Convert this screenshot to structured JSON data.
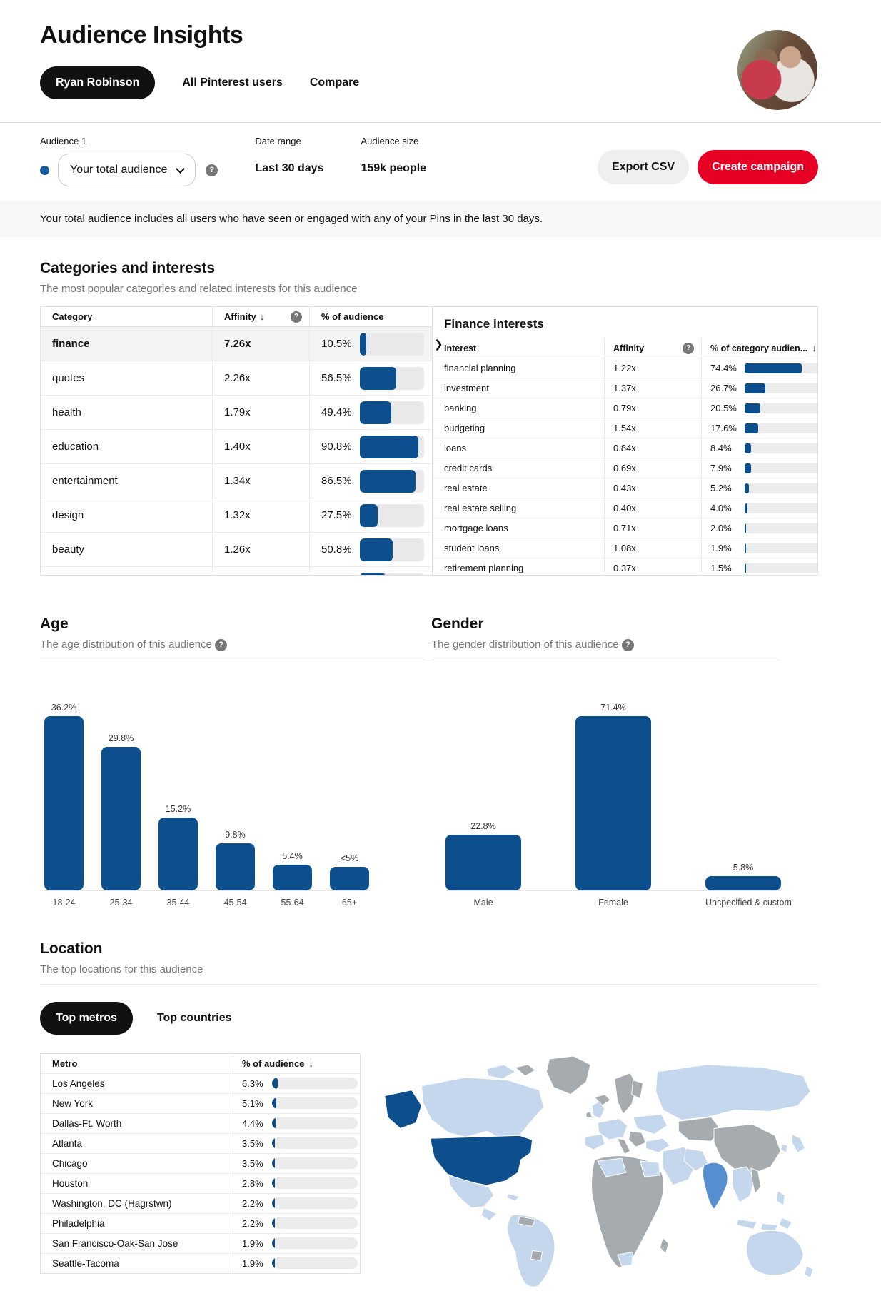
{
  "colors": {
    "accent_red": "#e60023",
    "bar_blue": "#0d4e8c",
    "bar_track": "#e9e9e9",
    "map_light": "#c4d7ec",
    "map_mid": "#568fd0",
    "map_gray": "#a6abb0",
    "selected_row_bg": "#f4f4f4",
    "dot_blue": "#15599f"
  },
  "icons": {
    "help": "?",
    "sort_desc": "↓",
    "chevron_right": "❯"
  },
  "header": {
    "title": "Audience Insights",
    "tabs": [
      {
        "label": "Ryan Robinson",
        "active": true
      },
      {
        "label": "All Pinterest users",
        "active": false
      },
      {
        "label": "Compare",
        "active": false
      }
    ]
  },
  "audience_bar": {
    "audience_label": "Audience 1",
    "selector_value": "Your total audience",
    "date_range_label": "Date range",
    "date_range_value": "Last 30 days",
    "audience_size_label": "Audience size",
    "audience_size_value": "159k people",
    "export_button": "Export CSV",
    "create_button": "Create campaign"
  },
  "banner": {
    "text": "Your total audience includes all users who have seen or engaged with any of your Pins in the last 30 days."
  },
  "categories": {
    "title": "Categories and interests",
    "subtitle": "The most popular categories and related interests for this audience",
    "table": {
      "headers": [
        "Category",
        "Affinity",
        "% of audience"
      ],
      "rows": [
        {
          "category": "finance",
          "affinity": "7.26x",
          "pct": "10.5%",
          "pct_value": 10.5,
          "selected": true
        },
        {
          "category": "quotes",
          "affinity": "2.26x",
          "pct": "56.5%",
          "pct_value": 56.5,
          "selected": false
        },
        {
          "category": "health",
          "affinity": "1.79x",
          "pct": "49.4%",
          "pct_value": 49.4,
          "selected": false
        },
        {
          "category": "education",
          "affinity": "1.40x",
          "pct": "90.8%",
          "pct_value": 90.8,
          "selected": false
        },
        {
          "category": "entertainment",
          "affinity": "1.34x",
          "pct": "86.5%",
          "pct_value": 86.5,
          "selected": false
        },
        {
          "category": "design",
          "affinity": "1.32x",
          "pct": "27.5%",
          "pct_value": 27.5,
          "selected": false
        },
        {
          "category": "beauty",
          "affinity": "1.26x",
          "pct": "50.8%",
          "pct_value": 50.8,
          "selected": false
        },
        {
          "category": "",
          "affinity": "",
          "pct": "",
          "pct_value": 40,
          "selected": false
        }
      ]
    },
    "detail": {
      "title": "Finance interests",
      "headers": [
        "Interest",
        "Affinity",
        "% of category audien..."
      ],
      "rows": [
        {
          "interest": "financial planning",
          "affinity": "1.22x",
          "pct": "74.4%",
          "pct_value": 74.4
        },
        {
          "interest": "investment",
          "affinity": "1.37x",
          "pct": "26.7%",
          "pct_value": 26.7
        },
        {
          "interest": "banking",
          "affinity": "0.79x",
          "pct": "20.5%",
          "pct_value": 20.5
        },
        {
          "interest": "budgeting",
          "affinity": "1.54x",
          "pct": "17.6%",
          "pct_value": 17.6
        },
        {
          "interest": "loans",
          "affinity": "0.84x",
          "pct": "8.4%",
          "pct_value": 8.4
        },
        {
          "interest": "credit cards",
          "affinity": "0.69x",
          "pct": "7.9%",
          "pct_value": 7.9
        },
        {
          "interest": "real estate",
          "affinity": "0.43x",
          "pct": "5.2%",
          "pct_value": 5.2
        },
        {
          "interest": "real estate selling",
          "affinity": "0.40x",
          "pct": "4.0%",
          "pct_value": 4.0
        },
        {
          "interest": "mortgage loans",
          "affinity": "0.71x",
          "pct": "2.0%",
          "pct_value": 2.0
        },
        {
          "interest": "student loans",
          "affinity": "1.08x",
          "pct": "1.9%",
          "pct_value": 1.9
        },
        {
          "interest": "retirement planning",
          "affinity": "0.37x",
          "pct": "1.5%",
          "pct_value": 1.5
        }
      ]
    }
  },
  "age": {
    "title": "Age",
    "subtitle": "The age distribution of this audience",
    "type": "bar",
    "categories": [
      "18-24",
      "25-34",
      "35-44",
      "45-54",
      "55-64",
      "65+"
    ],
    "values": [
      36.2,
      29.8,
      15.2,
      9.8,
      5.4,
      4.9
    ],
    "labels": [
      "36.2%",
      "29.8%",
      "15.2%",
      "9.8%",
      "5.4%",
      "<5%"
    ]
  },
  "gender": {
    "title": "Gender",
    "subtitle": "The gender distribution of this audience",
    "type": "bar",
    "categories": [
      "Male",
      "Female",
      "Unspecified & custom"
    ],
    "values": [
      22.8,
      71.4,
      5.8
    ],
    "labels": [
      "22.8%",
      "71.4%",
      "5.8%"
    ]
  },
  "location": {
    "title": "Location",
    "subtitle": "The top locations for this audience",
    "tabs": [
      {
        "label": "Top metros",
        "active": true
      },
      {
        "label": "Top countries",
        "active": false
      }
    ],
    "metro_table": {
      "headers": [
        "Metro",
        "% of audience"
      ],
      "rows": [
        {
          "metro": "Los Angeles",
          "pct": "6.3%",
          "pct_value": 6.3
        },
        {
          "metro": "New York",
          "pct": "5.1%",
          "pct_value": 5.1
        },
        {
          "metro": "Dallas-Ft. Worth",
          "pct": "4.4%",
          "pct_value": 4.4
        },
        {
          "metro": "Atlanta",
          "pct": "3.5%",
          "pct_value": 3.5
        },
        {
          "metro": "Chicago",
          "pct": "3.5%",
          "pct_value": 3.5
        },
        {
          "metro": "Houston",
          "pct": "2.8%",
          "pct_value": 2.8
        },
        {
          "metro": "Washington, DC (Hagrstwn)",
          "pct": "2.2%",
          "pct_value": 2.2
        },
        {
          "metro": "Philadelphia",
          "pct": "2.2%",
          "pct_value": 2.2
        },
        {
          "metro": "San Francisco-Oak-San Jose",
          "pct": "1.9%",
          "pct_value": 1.9
        },
        {
          "metro": "Seattle-Tacoma",
          "pct": "1.9%",
          "pct_value": 1.9
        }
      ]
    }
  }
}
